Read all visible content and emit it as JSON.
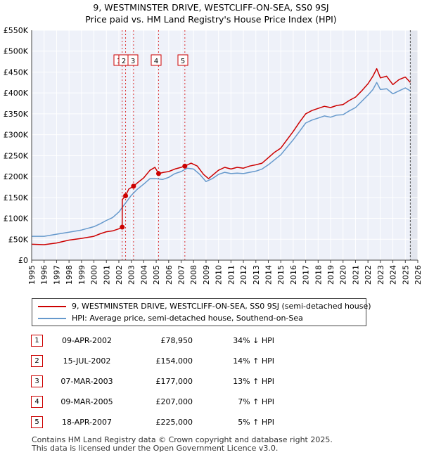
{
  "chart_data": {
    "type": "line",
    "title": "9, WESTMINSTER DRIVE, WESTCLIFF-ON-SEA, SS0 9SJ",
    "subtitle": "Price paid vs. HM Land Registry's House Price Index (HPI)",
    "xlim": [
      1995,
      2026
    ],
    "ylim": [
      0,
      550000
    ],
    "y_ticks": [
      0,
      50000,
      100000,
      150000,
      200000,
      250000,
      300000,
      350000,
      400000,
      450000,
      500000,
      550000
    ],
    "y_tick_labels": [
      "£0",
      "£50K",
      "£100K",
      "£150K",
      "£200K",
      "£250K",
      "£300K",
      "£350K",
      "£400K",
      "£450K",
      "£500K",
      "£550K"
    ],
    "x_ticks": [
      "1995",
      "1996",
      "1997",
      "1998",
      "1999",
      "2000",
      "2001",
      "2002",
      "2003",
      "2004",
      "2005",
      "2006",
      "2007",
      "2008",
      "2009",
      "2010",
      "2011",
      "2012",
      "2013",
      "2014",
      "2015",
      "2016",
      "2017",
      "2018",
      "2019",
      "2020",
      "2021",
      "2022",
      "2023",
      "2024",
      "2025",
      "2026"
    ],
    "grid": true,
    "series": [
      {
        "name": "9, WESTMINSTER DRIVE, WESTCLIFF-ON-SEA, SS0 9SJ (semi-detached house)",
        "color": "#cc0000",
        "points": [
          [
            1995.0,
            38000
          ],
          [
            1996.0,
            37000
          ],
          [
            1997.0,
            41000
          ],
          [
            1998.0,
            48000
          ],
          [
            1999.0,
            52000
          ],
          [
            2000.0,
            57000
          ],
          [
            2000.5,
            63000
          ],
          [
            2001.0,
            68000
          ],
          [
            2001.5,
            70000
          ],
          [
            2002.0,
            75000
          ],
          [
            2002.27,
            78950
          ],
          [
            2002.28,
            145000
          ],
          [
            2002.54,
            154000
          ],
          [
            2002.8,
            170000
          ],
          [
            2003.18,
            177000
          ],
          [
            2003.5,
            185000
          ],
          [
            2004.0,
            197000
          ],
          [
            2004.5,
            215000
          ],
          [
            2004.9,
            222000
          ],
          [
            2005.19,
            207000
          ],
          [
            2005.6,
            210000
          ],
          [
            2006.0,
            212000
          ],
          [
            2006.5,
            218000
          ],
          [
            2007.0,
            222000
          ],
          [
            2007.3,
            225000
          ],
          [
            2007.8,
            232000
          ],
          [
            2008.3,
            225000
          ],
          [
            2008.8,
            205000
          ],
          [
            2009.2,
            195000
          ],
          [
            2009.6,
            205000
          ],
          [
            2010.0,
            215000
          ],
          [
            2010.5,
            222000
          ],
          [
            2011.0,
            218000
          ],
          [
            2011.5,
            222000
          ],
          [
            2012.0,
            220000
          ],
          [
            2012.5,
            225000
          ],
          [
            2013.0,
            228000
          ],
          [
            2013.5,
            232000
          ],
          [
            2014.0,
            245000
          ],
          [
            2014.5,
            258000
          ],
          [
            2015.0,
            268000
          ],
          [
            2015.5,
            288000
          ],
          [
            2016.0,
            308000
          ],
          [
            2016.5,
            330000
          ],
          [
            2017.0,
            350000
          ],
          [
            2017.5,
            358000
          ],
          [
            2018.0,
            363000
          ],
          [
            2018.5,
            368000
          ],
          [
            2019.0,
            365000
          ],
          [
            2019.5,
            370000
          ],
          [
            2020.0,
            372000
          ],
          [
            2020.5,
            382000
          ],
          [
            2021.0,
            390000
          ],
          [
            2021.5,
            405000
          ],
          [
            2022.0,
            422000
          ],
          [
            2022.4,
            440000
          ],
          [
            2022.7,
            458000
          ],
          [
            2023.0,
            436000
          ],
          [
            2023.5,
            440000
          ],
          [
            2024.0,
            420000
          ],
          [
            2024.5,
            432000
          ],
          [
            2025.0,
            438000
          ],
          [
            2025.4,
            425000
          ]
        ]
      },
      {
        "name": "HPI: Average price, semi-detached house, Southend-on-Sea",
        "color": "#6699cc",
        "points": [
          [
            1995.0,
            57000
          ],
          [
            1996.0,
            57000
          ],
          [
            1997.0,
            62000
          ],
          [
            1998.0,
            67000
          ],
          [
            1999.0,
            72000
          ],
          [
            2000.0,
            80000
          ],
          [
            2000.5,
            87000
          ],
          [
            2001.0,
            95000
          ],
          [
            2001.5,
            102000
          ],
          [
            2002.0,
            115000
          ],
          [
            2002.5,
            135000
          ],
          [
            2003.0,
            155000
          ],
          [
            2003.5,
            170000
          ],
          [
            2004.0,
            182000
          ],
          [
            2004.5,
            195000
          ],
          [
            2005.0,
            195000
          ],
          [
            2005.5,
            193000
          ],
          [
            2006.0,
            198000
          ],
          [
            2006.5,
            207000
          ],
          [
            2007.0,
            212000
          ],
          [
            2007.5,
            220000
          ],
          [
            2008.0,
            218000
          ],
          [
            2008.5,
            205000
          ],
          [
            2009.0,
            188000
          ],
          [
            2009.5,
            195000
          ],
          [
            2010.0,
            205000
          ],
          [
            2010.5,
            210000
          ],
          [
            2011.0,
            207000
          ],
          [
            2011.5,
            208000
          ],
          [
            2012.0,
            207000
          ],
          [
            2012.5,
            210000
          ],
          [
            2013.0,
            213000
          ],
          [
            2013.5,
            218000
          ],
          [
            2014.0,
            228000
          ],
          [
            2014.5,
            240000
          ],
          [
            2015.0,
            252000
          ],
          [
            2015.5,
            270000
          ],
          [
            2016.0,
            288000
          ],
          [
            2016.5,
            308000
          ],
          [
            2017.0,
            328000
          ],
          [
            2017.5,
            335000
          ],
          [
            2018.0,
            340000
          ],
          [
            2018.5,
            345000
          ],
          [
            2019.0,
            342000
          ],
          [
            2019.5,
            347000
          ],
          [
            2020.0,
            348000
          ],
          [
            2020.5,
            357000
          ],
          [
            2021.0,
            365000
          ],
          [
            2021.5,
            380000
          ],
          [
            2022.0,
            395000
          ],
          [
            2022.4,
            408000
          ],
          [
            2022.7,
            425000
          ],
          [
            2023.0,
            408000
          ],
          [
            2023.5,
            410000
          ],
          [
            2024.0,
            398000
          ],
          [
            2024.5,
            405000
          ],
          [
            2025.0,
            412000
          ],
          [
            2025.4,
            405000
          ]
        ]
      }
    ],
    "sales": [
      {
        "marker": "1",
        "x": 2002.27,
        "price": 78950
      },
      {
        "marker": "2",
        "x": 2002.54,
        "price": 154000
      },
      {
        "marker": "3",
        "x": 2003.18,
        "price": 177000
      },
      {
        "marker": "4",
        "x": 2005.19,
        "price": 207000
      },
      {
        "marker": "5",
        "x": 2007.3,
        "price": 225000
      }
    ],
    "data_end_x": 2025.4
  },
  "legend": {
    "property_label": "9, WESTMINSTER DRIVE, WESTCLIFF-ON-SEA, SS0 9SJ (semi-detached house)",
    "hpi_label": "HPI: Average price, semi-detached house, Southend-on-Sea",
    "property_color": "#cc0000",
    "hpi_color": "#6699cc"
  },
  "transactions": [
    {
      "num": "1",
      "date": "09-APR-2002",
      "price": "£78,950",
      "hpi": "34% ↓ HPI"
    },
    {
      "num": "2",
      "date": "15-JUL-2002",
      "price": "£154,000",
      "hpi": "14% ↑ HPI"
    },
    {
      "num": "3",
      "date": "07-MAR-2003",
      "price": "£177,000",
      "hpi": "13% ↑ HPI"
    },
    {
      "num": "4",
      "date": "09-MAR-2005",
      "price": "£207,000",
      "hpi": "7% ↑ HPI"
    },
    {
      "num": "5",
      "date": "18-APR-2007",
      "price": "£225,000",
      "hpi": "5% ↑ HPI"
    }
  ],
  "footer": {
    "line1": "Contains HM Land Registry data © Crown copyright and database right 2025.",
    "line2": "This data is licensed under the Open Government Licence v3.0."
  }
}
